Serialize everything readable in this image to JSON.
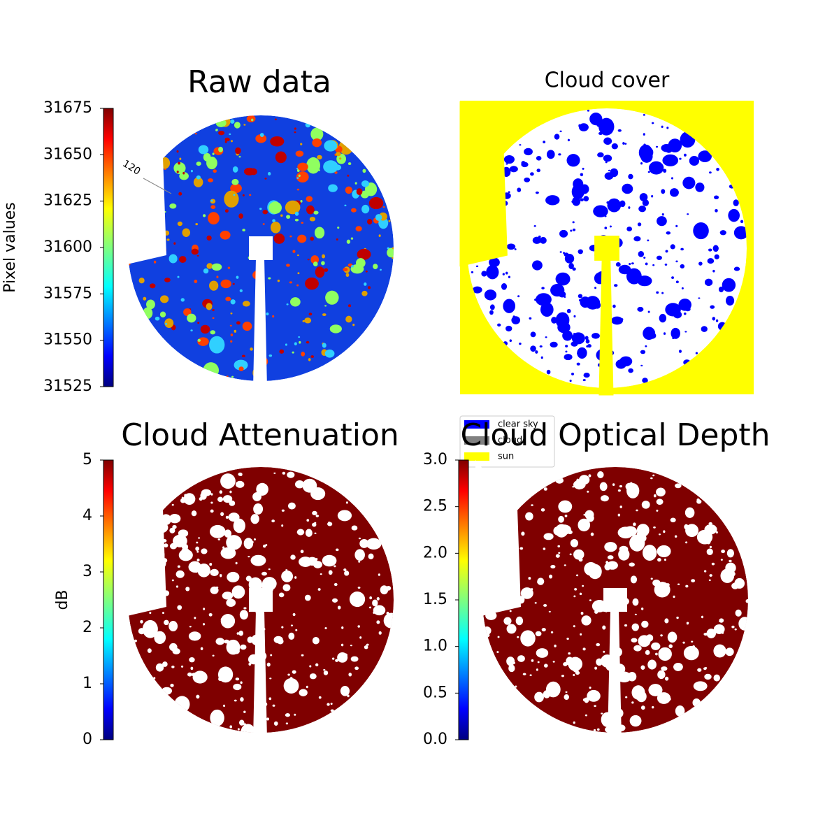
{
  "chart_data": [
    {
      "type": "image",
      "title": "Raw data",
      "colormap": "jet",
      "colorbar": {
        "label": "Pixel values",
        "lim": [
          31525,
          31675
        ],
        "ticks": [
          31525,
          31550,
          31575,
          31600,
          31625,
          31650,
          31675
        ]
      },
      "annotations": [
        "120"
      ]
    },
    {
      "type": "mask",
      "title": "Cloud cover",
      "legend": "lower left",
      "series": [
        {
          "name": "clear sky",
          "color": "#0000ff"
        },
        {
          "name": "cloud",
          "color": "#808080"
        },
        {
          "name": "sun",
          "color": "#ffff00"
        }
      ]
    },
    {
      "type": "image",
      "title": "Cloud Attenuation",
      "colormap": "jet",
      "colorbar": {
        "label": "dB",
        "lim": [
          0,
          5
        ],
        "ticks": [
          0,
          1,
          2,
          3,
          4,
          5
        ]
      }
    },
    {
      "type": "image",
      "title": "Cloud Optical Depth",
      "colormap": "jet",
      "colorbar": {
        "lim": [
          0,
          3
        ],
        "ticks": [
          {
            "value": 0,
            "label": "0.0"
          },
          0.5,
          {
            "value": 1,
            "label": "1.0"
          },
          1.5,
          {
            "value": 2,
            "label": "2.0"
          },
          2.5,
          {
            "value": 3,
            "label": "3.0"
          }
        ]
      }
    }
  ]
}
